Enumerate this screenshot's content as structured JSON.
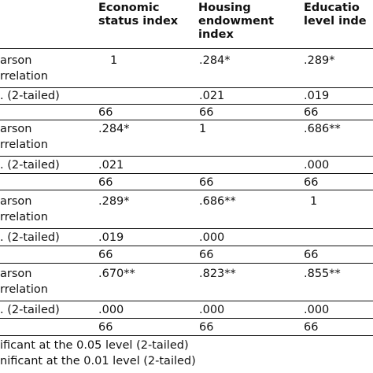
{
  "headers": [
    {
      "lines": [
        "Economic",
        "status index"
      ]
    },
    {
      "lines": [
        "Housing",
        "endowment",
        "index"
      ]
    },
    {
      "lines": [
        "Educatio",
        "level inde"
      ]
    }
  ],
  "rows": [
    {
      "label": [
        "arson",
        "rrelation"
      ],
      "cells": [
        "1",
        ".284*",
        ".289*"
      ]
    },
    {
      "label": [
        ". (2-tailed)"
      ],
      "cells": [
        "",
        ".021",
        ".019"
      ]
    },
    {
      "label": [
        ""
      ],
      "cells": [
        "66",
        "66",
        "66"
      ]
    },
    {
      "label": [
        "arson",
        "rrelation"
      ],
      "cells": [
        ".284*",
        "1",
        ".686**"
      ]
    },
    {
      "label": [
        ". (2-tailed)"
      ],
      "cells": [
        ".021",
        "",
        ".000"
      ]
    },
    {
      "label": [
        ""
      ],
      "cells": [
        "66",
        "66",
        "66"
      ]
    },
    {
      "label": [
        "arson",
        "rrelation"
      ],
      "cells": [
        ".289*",
        ".686**",
        "1"
      ]
    },
    {
      "label": [
        ". (2-tailed)"
      ],
      "cells": [
        ".019",
        ".000",
        ""
      ]
    },
    {
      "label": [
        ""
      ],
      "cells": [
        "66",
        "66",
        "66"
      ]
    },
    {
      "label": [
        "arson",
        "rrelation"
      ],
      "cells": [
        ".670**",
        ".823**",
        ".855**"
      ]
    },
    {
      "label": [
        ". (2-tailed)"
      ],
      "cells": [
        ".000",
        ".000",
        ".000"
      ]
    },
    {
      "label": [
        ""
      ],
      "cells": [
        "66",
        "66",
        "66"
      ]
    }
  ],
  "footnotes": [
    "ificant at the 0.05 level (2-tailed)",
    "nificant at the 0.01 level (2-tailed)"
  ]
}
